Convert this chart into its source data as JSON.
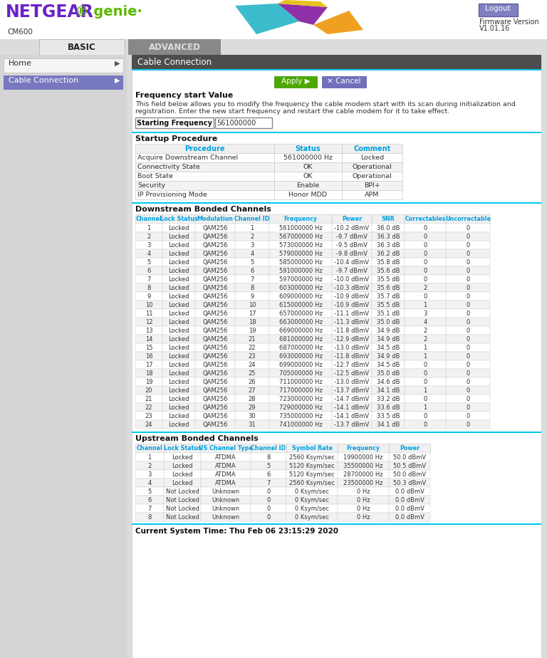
{
  "model": "CM600",
  "firmware_line1": "Firmware Version",
  "firmware_line2": "V1.01.16",
  "startup_headers": [
    "Procedure",
    "Status",
    "Comment"
  ],
  "startup_rows": [
    [
      "Acquire Downstream Channel",
      "561000000 Hz",
      "Locked"
    ],
    [
      "Connectivity State",
      "OK",
      "Operational"
    ],
    [
      "Boot State",
      "OK",
      "Operational"
    ],
    [
      "Security",
      "Enable",
      "BPI+"
    ],
    [
      "IP Provisioning Mode",
      "Honor MDD",
      "APM"
    ]
  ],
  "downstream_headers": [
    "Channel",
    "Lock Status",
    "Modulation",
    "Channel ID",
    "Frequency",
    "Power",
    "SNR",
    "Correctables",
    "Uncorrectable"
  ],
  "downstream_rows": [
    [
      "1",
      "Locked",
      "QAM256",
      "1",
      "561000000 Hz",
      "-10.2 dBmV",
      "36.0 dB",
      "0",
      "0"
    ],
    [
      "2",
      "Locked",
      "QAM256",
      "2",
      "567000000 Hz",
      "-9.7 dBmV",
      "36.3 dB",
      "0",
      "0"
    ],
    [
      "3",
      "Locked",
      "QAM256",
      "3",
      "573000000 Hz",
      "-9.5 dBmV",
      "36.3 dB",
      "0",
      "0"
    ],
    [
      "4",
      "Locked",
      "QAM256",
      "4",
      "579000000 Hz",
      "-9.8 dBmV",
      "36.2 dB",
      "0",
      "0"
    ],
    [
      "5",
      "Locked",
      "QAM256",
      "5",
      "585000000 Hz",
      "-10.4 dBmV",
      "35.8 dB",
      "0",
      "0"
    ],
    [
      "6",
      "Locked",
      "QAM256",
      "6",
      "591000000 Hz",
      "-9.7 dBmV",
      "35.6 dB",
      "0",
      "0"
    ],
    [
      "7",
      "Locked",
      "QAM256",
      "7",
      "597000000 Hz",
      "-10.0 dBmV",
      "35.5 dB",
      "0",
      "0"
    ],
    [
      "8",
      "Locked",
      "QAM256",
      "8",
      "603000000 Hz",
      "-10.3 dBmV",
      "35.6 dB",
      "2",
      "0"
    ],
    [
      "9",
      "Locked",
      "QAM256",
      "9",
      "609000000 Hz",
      "-10.9 dBmV",
      "35.7 dB",
      "0",
      "0"
    ],
    [
      "10",
      "Locked",
      "QAM256",
      "10",
      "615000000 Hz",
      "-10.9 dBmV",
      "35.5 dB",
      "1",
      "0"
    ],
    [
      "11",
      "Locked",
      "QAM256",
      "17",
      "657000000 Hz",
      "-11.1 dBmV",
      "35.1 dB",
      "3",
      "0"
    ],
    [
      "12",
      "Locked",
      "QAM256",
      "18",
      "663000000 Hz",
      "-11.3 dBmV",
      "35.0 dB",
      "4",
      "0"
    ],
    [
      "13",
      "Locked",
      "QAM256",
      "19",
      "669000000 Hz",
      "-11.8 dBmV",
      "34.9 dB",
      "2",
      "0"
    ],
    [
      "14",
      "Locked",
      "QAM256",
      "21",
      "681000000 Hz",
      "-12.9 dBmV",
      "34.9 dB",
      "2",
      "0"
    ],
    [
      "15",
      "Locked",
      "QAM256",
      "22",
      "687000000 Hz",
      "-13.0 dBmV",
      "34.5 dB",
      "1",
      "0"
    ],
    [
      "16",
      "Locked",
      "QAM256",
      "23",
      "693000000 Hz",
      "-11.8 dBmV",
      "34.9 dB",
      "1",
      "0"
    ],
    [
      "17",
      "Locked",
      "QAM256",
      "24",
      "699000000 Hz",
      "-12.7 dBmV",
      "34.5 dB",
      "0",
      "0"
    ],
    [
      "18",
      "Locked",
      "QAM256",
      "25",
      "705000000 Hz",
      "-12.5 dBmV",
      "35.0 dB",
      "0",
      "0"
    ],
    [
      "19",
      "Locked",
      "QAM256",
      "26",
      "711000000 Hz",
      "-13.0 dBmV",
      "34.6 dB",
      "0",
      "0"
    ],
    [
      "20",
      "Locked",
      "QAM256",
      "27",
      "717000000 Hz",
      "-13.7 dBmV",
      "34.1 dB",
      "1",
      "0"
    ],
    [
      "21",
      "Locked",
      "QAM256",
      "28",
      "723000000 Hz",
      "-14.7 dBmV",
      "33.2 dB",
      "0",
      "0"
    ],
    [
      "22",
      "Locked",
      "QAM256",
      "29",
      "729000000 Hz",
      "-14.1 dBmV",
      "33.6 dB",
      "1",
      "0"
    ],
    [
      "23",
      "Locked",
      "QAM256",
      "30",
      "735000000 Hz",
      "-14.1 dBmV",
      "33.5 dB",
      "0",
      "0"
    ],
    [
      "24",
      "Locked",
      "QAM256",
      "31",
      "741000000 Hz",
      "-13.7 dBmV",
      "34.1 dB",
      "0",
      "0"
    ]
  ],
  "upstream_headers": [
    "Channel",
    "Lock Status",
    "US Channel Type",
    "Channel ID",
    "Symbol Rate",
    "Frequency",
    "Power"
  ],
  "upstream_rows": [
    [
      "1",
      "Locked",
      "ATDMA",
      "8",
      "2560 Ksym/sec",
      "19900000 Hz",
      "50.0 dBmV"
    ],
    [
      "2",
      "Locked",
      "ATDMA",
      "5",
      "5120 Ksym/sec",
      "35500000 Hz",
      "50.5 dBmV"
    ],
    [
      "3",
      "Locked",
      "ATDMA",
      "6",
      "5120 Ksym/sec",
      "28700000 Hz",
      "50.0 dBmV"
    ],
    [
      "4",
      "Locked",
      "ATDMA",
      "7",
      "2560 Ksym/sec",
      "23500000 Hz",
      "50.3 dBmV"
    ],
    [
      "5",
      "Not Locked",
      "Unknown",
      "0",
      "0 Ksym/sec",
      "0 Hz",
      "0.0 dBmV"
    ],
    [
      "6",
      "Not Locked",
      "Unknown",
      "0",
      "0 Ksym/sec",
      "0 Hz",
      "0.0 dBmV"
    ],
    [
      "7",
      "Not Locked",
      "Unknown",
      "0",
      "0 Ksym/sec",
      "0 Hz",
      "0.0 dBmV"
    ],
    [
      "8",
      "Not Locked",
      "Unknown",
      "0",
      "0 Ksym/sec",
      "0 Hz",
      "0.0 dBmV"
    ]
  ],
  "footer": "Current System Time: Thu Feb 06 23:15:29 2020",
  "colors": {
    "bg": "#dcdcdc",
    "white": "#ffffff",
    "netgear_purple": "#6b21c8",
    "genie_green": "#5cb800",
    "tab_active_bg": "#f0f0f0",
    "tab_inactive_bg": "#888888",
    "section_header_bg": "#4d4d4d",
    "section_header_text": "#ffffff",
    "table_header_text": "#00a0e0",
    "cyan_line": "#00c8f0",
    "apply_btn_bg": "#4da800",
    "cancel_btn_bg": "#7070bb",
    "left_menu_active_bg": "#7878c0",
    "text_dark": "#222222",
    "text_mid": "#444444",
    "border_light": "#cccccc",
    "row_even": "#ffffff",
    "row_odd": "#f2f2f2"
  }
}
